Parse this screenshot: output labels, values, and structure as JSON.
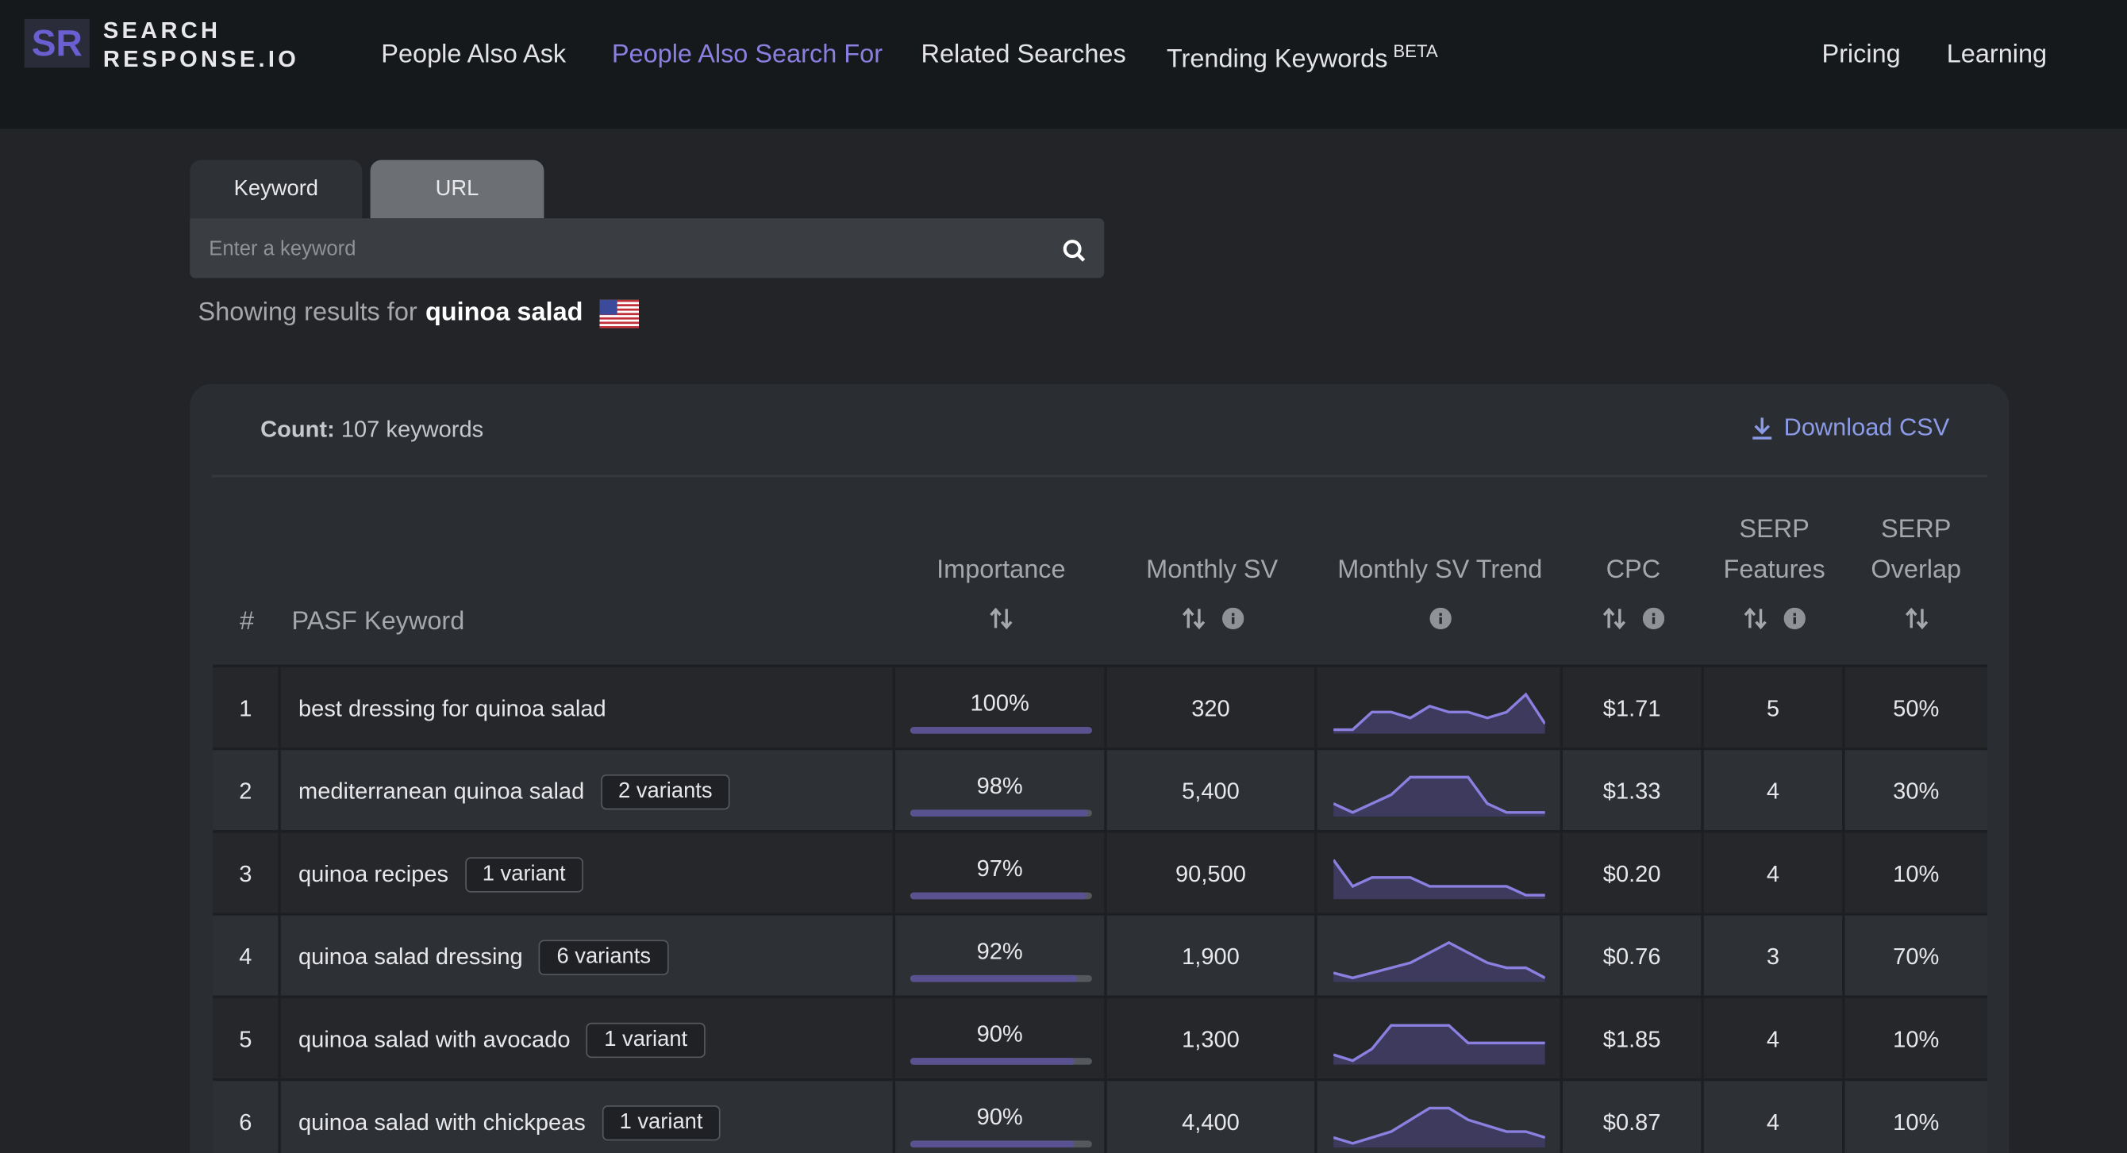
{
  "header": {
    "logo_mark": "SR",
    "logo_line1": "SEARCH",
    "logo_line2": "RESPONSE.IO",
    "nav": [
      "People Also Ask",
      "People Also Search For",
      "Related Searches",
      "Trending Keywords"
    ],
    "nav_badge": "BETA",
    "nav_right": [
      "Pricing",
      "Learning"
    ]
  },
  "search": {
    "tabs": [
      "Keyword",
      "URL"
    ],
    "placeholder": "Enter a keyword",
    "results_prefix": "Showing results for",
    "query": "quinoa salad"
  },
  "table": {
    "count_label": "Count:",
    "count_text": "107 keywords",
    "download": "Download CSV",
    "columns": [
      "#",
      "PASF Keyword",
      "Importance",
      "Monthly SV",
      "Monthly SV Trend",
      "CPC",
      "SERP Features",
      "SERP Overlap"
    ],
    "rows": [
      {
        "rank": "1",
        "keyword": "best dressing for quinoa salad",
        "importance": {
          "value": 100,
          "label": "100%"
        },
        "monthly_sv": "320",
        "trend": [
          2,
          2,
          5,
          5,
          4,
          6,
          5,
          5,
          4,
          5,
          8,
          3
        ],
        "cpc": "$1.71",
        "serp_features": "5",
        "serp_overlap": "50%"
      },
      {
        "rank": "2",
        "keyword": "mediterranean quinoa salad",
        "variants": "2 variants",
        "importance": {
          "value": 98,
          "label": "98%"
        },
        "monthly_sv": "5,400",
        "trend": [
          5,
          4,
          5,
          6,
          8,
          8,
          8,
          8,
          5,
          4,
          4,
          4
        ],
        "cpc": "$1.33",
        "serp_features": "4",
        "serp_overlap": "30%"
      },
      {
        "rank": "3",
        "keyword": "quinoa recipes",
        "variants": "1 variant",
        "importance": {
          "value": 97,
          "label": "97%"
        },
        "monthly_sv": "90,500",
        "trend": [
          9,
          6,
          7,
          7,
          7,
          6,
          6,
          6,
          6,
          6,
          5,
          5
        ],
        "cpc": "$0.20",
        "serp_features": "4",
        "serp_overlap": "10%"
      },
      {
        "rank": "4",
        "keyword": "quinoa salad dressing",
        "variants": "6 variants",
        "importance": {
          "value": 92,
          "label": "92%"
        },
        "monthly_sv": "1,900",
        "trend": [
          3,
          2,
          3,
          4,
          5,
          7,
          9,
          7,
          5,
          4,
          4,
          2
        ],
        "cpc": "$0.76",
        "serp_features": "3",
        "serp_overlap": "70%"
      },
      {
        "rank": "5",
        "keyword": "quinoa salad with avocado",
        "variants": "1 variant",
        "importance": {
          "value": 90,
          "label": "90%"
        },
        "monthly_sv": "1,300",
        "trend": [
          4,
          3,
          5,
          9,
          9,
          9,
          9,
          6,
          6,
          6,
          6,
          6
        ],
        "cpc": "$1.85",
        "serp_features": "4",
        "serp_overlap": "10%"
      },
      {
        "rank": "6",
        "keyword": "quinoa salad with chickpeas",
        "variants": "1 variant",
        "importance": {
          "value": 90,
          "label": "90%"
        },
        "monthly_sv": "4,400",
        "trend": [
          3,
          2,
          3,
          4,
          6,
          8,
          8,
          6,
          5,
          4,
          4,
          3
        ],
        "cpc": "$0.87",
        "serp_features": "4",
        "serp_overlap": "10%"
      }
    ]
  }
}
